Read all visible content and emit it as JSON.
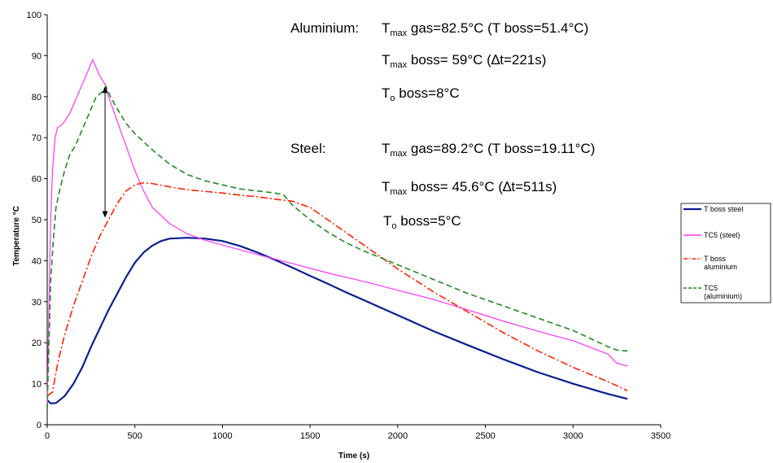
{
  "chart_data": {
    "type": "line",
    "xlabel": "Time (s)",
    "ylabel": "Temperature °C",
    "xlim": [
      0,
      3500
    ],
    "ylim": [
      0,
      100
    ],
    "x_ticks": [
      0,
      500,
      1000,
      1500,
      2000,
      2500,
      3000,
      3500
    ],
    "y_ticks": [
      0,
      10,
      20,
      30,
      40,
      50,
      60,
      70,
      80,
      90,
      100
    ],
    "grid": false,
    "legend_position": "right",
    "series": [
      {
        "name": "T boss steel",
        "color": "#0a1f8f",
        "dash": "solid",
        "points": [
          [
            0,
            6
          ],
          [
            20,
            5.2
          ],
          [
            50,
            5.3
          ],
          [
            100,
            7
          ],
          [
            150,
            10
          ],
          [
            200,
            14
          ],
          [
            250,
            19
          ],
          [
            300,
            23.5
          ],
          [
            350,
            28
          ],
          [
            400,
            32
          ],
          [
            450,
            36
          ],
          [
            500,
            39.5
          ],
          [
            550,
            42
          ],
          [
            600,
            43.7
          ],
          [
            650,
            44.8
          ],
          [
            700,
            45.4
          ],
          [
            800,
            45.6
          ],
          [
            900,
            45.4
          ],
          [
            1000,
            44.8
          ],
          [
            1100,
            43.6
          ],
          [
            1200,
            42
          ],
          [
            1300,
            40.2
          ],
          [
            1400,
            38.3
          ],
          [
            1500,
            36.3
          ],
          [
            1600,
            34.4
          ],
          [
            1700,
            32.4
          ],
          [
            1800,
            30.5
          ],
          [
            2000,
            26.7
          ],
          [
            2200,
            22.9
          ],
          [
            2400,
            19.4
          ],
          [
            2600,
            16
          ],
          [
            2800,
            12.8
          ],
          [
            3000,
            10
          ],
          [
            3200,
            7.5
          ],
          [
            3310,
            6.3
          ]
        ]
      },
      {
        "name": "TC5 (steel)",
        "color": "#ff33ff",
        "dash": "solid",
        "points": [
          [
            0,
            4
          ],
          [
            10,
            30
          ],
          [
            20,
            50
          ],
          [
            30,
            62
          ],
          [
            45,
            70
          ],
          [
            60,
            72.5
          ],
          [
            80,
            73
          ],
          [
            100,
            74
          ],
          [
            130,
            76
          ],
          [
            160,
            79
          ],
          [
            200,
            83
          ],
          [
            230,
            86
          ],
          [
            260,
            89
          ],
          [
            280,
            87
          ],
          [
            300,
            85
          ],
          [
            330,
            83
          ],
          [
            350,
            80
          ],
          [
            400,
            74
          ],
          [
            450,
            68
          ],
          [
            500,
            62
          ],
          [
            550,
            57
          ],
          [
            600,
            53
          ],
          [
            700,
            49
          ],
          [
            800,
            46.5
          ],
          [
            900,
            45
          ],
          [
            1000,
            43.8
          ],
          [
            1200,
            41.5
          ],
          [
            1400,
            39.3
          ],
          [
            1600,
            37
          ],
          [
            1800,
            35
          ],
          [
            2000,
            32.8
          ],
          [
            2200,
            30.6
          ],
          [
            2400,
            28
          ],
          [
            2600,
            25.3
          ],
          [
            2800,
            22.8
          ],
          [
            3000,
            20.5
          ],
          [
            3200,
            17.2
          ],
          [
            3250,
            15
          ],
          [
            3310,
            14.3
          ]
        ]
      },
      {
        "name": "T boss\naluminium",
        "color": "#ff2200",
        "dash": "9,3,2,3",
        "points": [
          [
            0,
            7
          ],
          [
            30,
            8
          ],
          [
            60,
            15
          ],
          [
            100,
            22
          ],
          [
            150,
            29
          ],
          [
            200,
            35
          ],
          [
            250,
            41
          ],
          [
            300,
            46
          ],
          [
            350,
            50
          ],
          [
            400,
            54
          ],
          [
            450,
            57
          ],
          [
            500,
            58.5
          ],
          [
            550,
            59
          ],
          [
            600,
            58.8
          ],
          [
            700,
            58
          ],
          [
            800,
            57.3
          ],
          [
            900,
            56.9
          ],
          [
            1000,
            56.5
          ],
          [
            1100,
            56
          ],
          [
            1200,
            55.6
          ],
          [
            1300,
            55
          ],
          [
            1400,
            54.5
          ],
          [
            1500,
            53
          ],
          [
            1600,
            50
          ],
          [
            1700,
            47
          ],
          [
            1800,
            44
          ],
          [
            2000,
            38
          ],
          [
            2200,
            32.5
          ],
          [
            2400,
            27.5
          ],
          [
            2600,
            22.5
          ],
          [
            2800,
            18
          ],
          [
            3000,
            14
          ],
          [
            3200,
            10.5
          ],
          [
            3310,
            8.3
          ]
        ]
      },
      {
        "name": "TC5\n(aluminium)",
        "color": "#228b22",
        "dash": "7,4",
        "points": [
          [
            0,
            4
          ],
          [
            10,
            20
          ],
          [
            20,
            35
          ],
          [
            35,
            45
          ],
          [
            50,
            53
          ],
          [
            70,
            57
          ],
          [
            100,
            62
          ],
          [
            130,
            66
          ],
          [
            160,
            68
          ],
          [
            200,
            72
          ],
          [
            240,
            76
          ],
          [
            280,
            80
          ],
          [
            310,
            81
          ],
          [
            335,
            82.5
          ],
          [
            360,
            80
          ],
          [
            400,
            77
          ],
          [
            450,
            73.5
          ],
          [
            500,
            71
          ],
          [
            550,
            69
          ],
          [
            600,
            67
          ],
          [
            700,
            63.5
          ],
          [
            800,
            61
          ],
          [
            900,
            59.5
          ],
          [
            1000,
            58.5
          ],
          [
            1100,
            57.5
          ],
          [
            1200,
            57
          ],
          [
            1300,
            56.5
          ],
          [
            1350,
            56
          ],
          [
            1400,
            53.5
          ],
          [
            1500,
            50
          ],
          [
            1600,
            47
          ],
          [
            1700,
            44.5
          ],
          [
            1800,
            42.5
          ],
          [
            2000,
            39
          ],
          [
            2200,
            35.5
          ],
          [
            2400,
            32
          ],
          [
            2600,
            29
          ],
          [
            2800,
            26
          ],
          [
            3000,
            23
          ],
          [
            3200,
            19
          ],
          [
            3250,
            18.2
          ],
          [
            3310,
            18
          ]
        ]
      }
    ],
    "arrow": {
      "x": 330,
      "y_top": 82.5,
      "y_bottom": 50.5
    }
  },
  "annotations": {
    "al_label": "Aluminium:",
    "al_line1": {
      "T": "T",
      "sub": "max",
      "text": " gas=82.5°C  (T boss=51.4°C)"
    },
    "al_line2": {
      "T": "T",
      "sub": "max",
      "text": " boss= 59°C (∆t=221s)"
    },
    "al_line3": {
      "T": "T",
      "sub": "o",
      "text": " boss=8°C"
    },
    "st_label": "Steel:",
    "st_line1": {
      "T": "T",
      "sub": "max",
      "text": " gas=89.2°C  (T boss=19.11°C)"
    },
    "st_line2": {
      "T": "T",
      "sub": "max",
      "text": " boss= 45.6°C (∆t=511s)"
    },
    "st_line3": {
      "T": "T",
      "sub": "o",
      "text": " boss=5°C"
    }
  }
}
